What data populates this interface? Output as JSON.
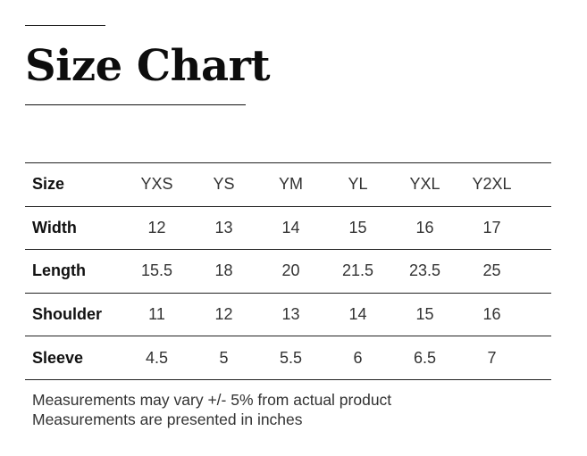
{
  "title": "Size Chart",
  "table": {
    "header": {
      "label": "Size",
      "cells": [
        "YXS",
        "YS",
        "YM",
        "YL",
        "YXL",
        "Y2XL"
      ]
    },
    "rows": [
      {
        "label": "Width",
        "cells": [
          "12",
          "13",
          "14",
          "15",
          "16",
          "17"
        ]
      },
      {
        "label": "Length",
        "cells": [
          "15.5",
          "18",
          "20",
          "21.5",
          "23.5",
          "25"
        ]
      },
      {
        "label": "Shoulder",
        "cells": [
          "11",
          "12",
          "13",
          "14",
          "15",
          "16"
        ]
      },
      {
        "label": "Sleeve",
        "cells": [
          "4.5",
          "5",
          "5.5",
          "6",
          "6.5",
          "7"
        ]
      }
    ]
  },
  "notes": [
    "Measurements may vary +/- 5% from actual product",
    "Measurements are presented in inches"
  ]
}
